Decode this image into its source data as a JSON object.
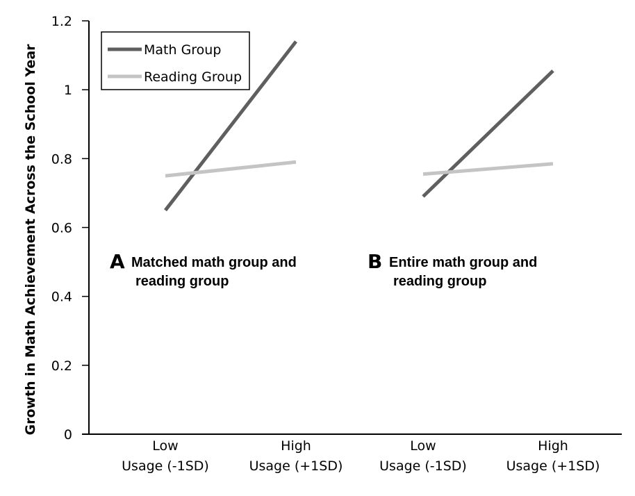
{
  "chart_data": {
    "type": "line",
    "ylabel": "Growth in Math Achievement Across the School Year",
    "xlabel": "",
    "ylim": [
      0,
      1.2
    ],
    "yticks": [
      "0",
      "0.2",
      "0.4",
      "0.6",
      "0.8",
      "1",
      "1.2"
    ],
    "grid": false,
    "legend_position": "top-left",
    "colors": {
      "math": "#5f5f5f",
      "reading": "#c4c4c4"
    },
    "legend": [
      "Math Group",
      "Reading Group"
    ],
    "panels": [
      {
        "letter": "A",
        "text_lines": [
          "Matched math group and",
          "reading group"
        ],
        "categories": [
          [
            "Low",
            "Usage (-1SD)"
          ],
          [
            "High",
            "Usage (+1SD)"
          ]
        ],
        "series": [
          {
            "name": "Math Group",
            "values": [
              0.65,
              1.14
            ]
          },
          {
            "name": "Reading Group",
            "values": [
              0.75,
              0.79
            ]
          }
        ]
      },
      {
        "letter": "B",
        "text_lines": [
          "Entire math group and",
          "reading group"
        ],
        "categories": [
          [
            "Low",
            "Usage (-1SD)"
          ],
          [
            "High",
            "Usage (+1SD)"
          ]
        ],
        "series": [
          {
            "name": "Math Group",
            "values": [
              0.69,
              1.055
            ]
          },
          {
            "name": "Reading Group",
            "values": [
              0.755,
              0.785
            ]
          }
        ]
      }
    ]
  }
}
